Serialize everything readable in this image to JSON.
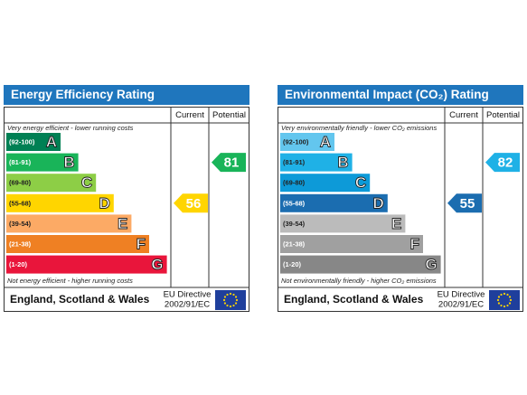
{
  "panels": [
    {
      "title": "Energy Efficiency Rating",
      "columns": [
        "Current",
        "Potential"
      ],
      "top_note": "Very energy efficient - lower running costs",
      "bottom_note": "Not energy efficient - higher running costs",
      "bands": [
        {
          "range": "(92-100)",
          "letter": "A",
          "color": "#008054",
          "label_color": "#fff"
        },
        {
          "range": "(81-91)",
          "letter": "B",
          "color": "#19b459",
          "label_color": "#fff"
        },
        {
          "range": "(69-80)",
          "letter": "C",
          "color": "#8dce46",
          "label_color": "#222"
        },
        {
          "range": "(55-68)",
          "letter": "D",
          "color": "#ffd500",
          "label_color": "#222"
        },
        {
          "range": "(39-54)",
          "letter": "E",
          "color": "#fcaa65",
          "label_color": "#222"
        },
        {
          "range": "(21-38)",
          "letter": "F",
          "color": "#ef8023",
          "label_color": "#fff"
        },
        {
          "range": "(1-20)",
          "letter": "G",
          "color": "#e9153b",
          "label_color": "#fff"
        }
      ],
      "current": 56,
      "potential": 81,
      "region": "England, Scotland & Wales",
      "directive": [
        "EU Directive",
        "2002/91/EC"
      ]
    },
    {
      "title": "Environmental Impact (CO₂) Rating",
      "columns": [
        "Current",
        "Potential"
      ],
      "top_note": "Very environmentally friendly - lower CO₂ emissions",
      "bottom_note": "Not environmentally friendly - higher CO₂ emissions",
      "bands": [
        {
          "range": "(92-100)",
          "letter": "A",
          "color": "#63c6ee",
          "label_color": "#222"
        },
        {
          "range": "(81-91)",
          "letter": "B",
          "color": "#1fb1e6",
          "label_color": "#222"
        },
        {
          "range": "(69-80)",
          "letter": "C",
          "color": "#0d9ad8",
          "label_color": "#222"
        },
        {
          "range": "(55-68)",
          "letter": "D",
          "color": "#1b6db0",
          "label_color": "#fff"
        },
        {
          "range": "(39-54)",
          "letter": "E",
          "color": "#bbbbbb",
          "label_color": "#222"
        },
        {
          "range": "(21-38)",
          "letter": "F",
          "color": "#a0a0a0",
          "label_color": "#fff"
        },
        {
          "range": "(1-20)",
          "letter": "G",
          "color": "#878787",
          "label_color": "#fff"
        }
      ],
      "current": 55,
      "potential": 82,
      "region": "England, Scotland & Wales",
      "directive": [
        "EU Directive",
        "2002/91/EC"
      ]
    }
  ]
}
